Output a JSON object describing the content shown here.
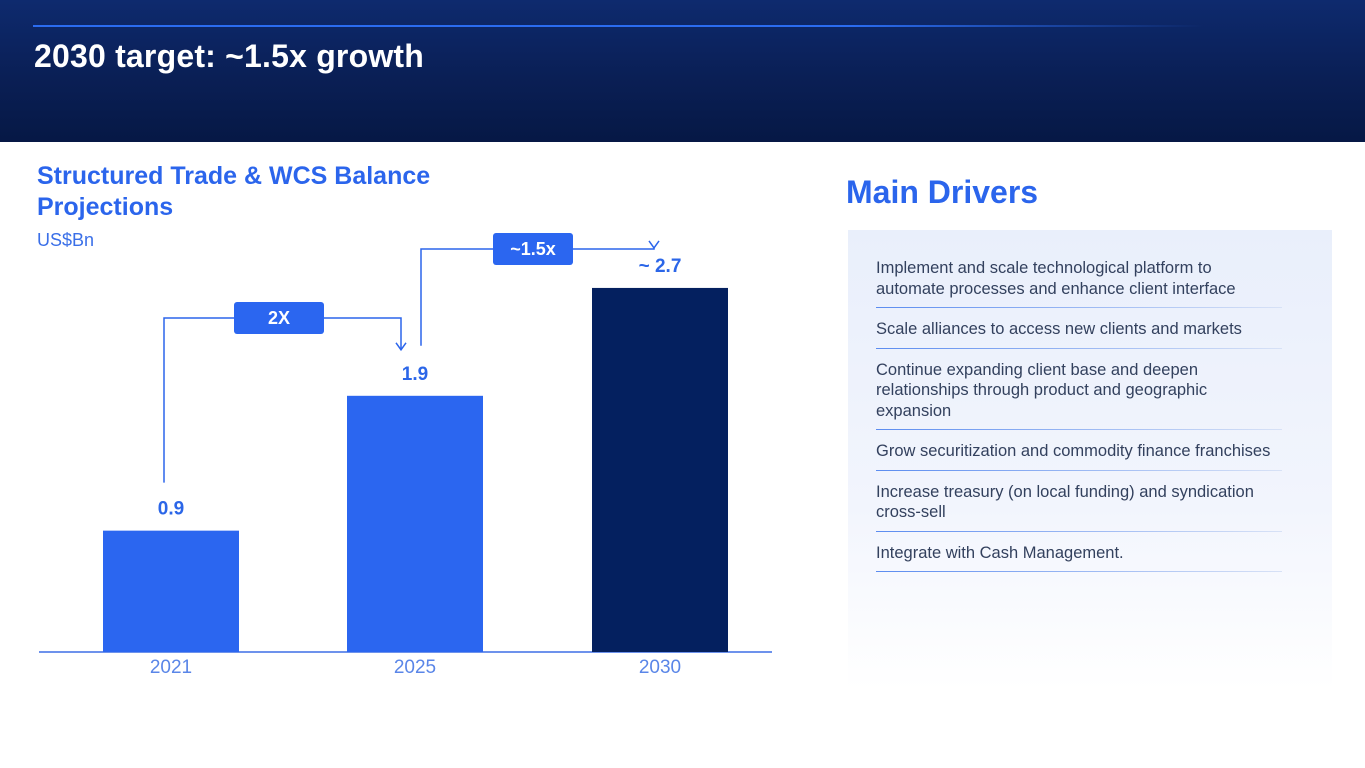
{
  "header": {
    "title": "2030 target: ~1.5x growth"
  },
  "chart": {
    "title": "Structured Trade & WCS Balance Projections",
    "unit": "US$Bn"
  },
  "chart_data": {
    "type": "bar",
    "title": "Structured Trade & WCS Balance Projections",
    "ylabel": "US$Bn",
    "categories": [
      "2021",
      "2025",
      "2030"
    ],
    "values": [
      0.9,
      1.9,
      2.7
    ],
    "value_labels": [
      "0.9",
      "1.9",
      "~ 2.7"
    ],
    "bar_colors": [
      "#2b66f0",
      "#2b66f0",
      "#04205f"
    ],
    "ylim": [
      0,
      3.1
    ],
    "grid": false,
    "annotations": [
      {
        "label": "2X",
        "from": "2021",
        "to": "2025"
      },
      {
        "label": "~1.5x",
        "from": "2025",
        "to": "2030"
      }
    ]
  },
  "drivers": {
    "title": "Main Drivers",
    "items": [
      "Implement and scale technological platform to automate processes and enhance client interface",
      "Scale alliances to access new clients and markets",
      "Continue expanding client base and deepen relationships through product and geographic expansion",
      "Grow securitization and commodity finance franchises",
      "Increase treasury (on local funding) and syndication cross-sell",
      "Integrate with Cash Management."
    ]
  },
  "colors": {
    "accent": "#2b65ec",
    "navy": "#04205f",
    "header_bg": "#0a1f55"
  }
}
